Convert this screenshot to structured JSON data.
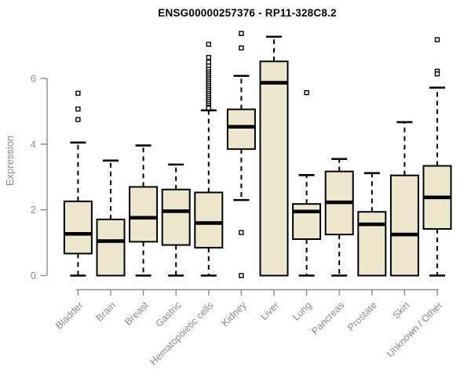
{
  "chart_data": {
    "type": "boxplot",
    "title": "ENSG00000257376 - RP11-328C8.2",
    "ylabel": "Expression",
    "xlabel": "",
    "ylim": [
      -0.4,
      7.5
    ],
    "yticks": [
      0,
      2,
      4,
      6
    ],
    "grid": false,
    "legend": "none",
    "categories": [
      "Bladder",
      "Brain",
      "Breast",
      "Gastric",
      "Hematopoietic cells",
      "Kidney",
      "Liver",
      "Lung",
      "Pancreas",
      "Prostate",
      "Skin",
      "Unknown / Other"
    ],
    "boxes": [
      {
        "label": "Bladder",
        "whisker_low": 0.0,
        "q1": 0.67,
        "median": 1.27,
        "q3": 2.26,
        "whisker_high": 4.05,
        "outliers": [
          4.75,
          5.07,
          5.55
        ]
      },
      {
        "label": "Brain",
        "whisker_low": 0.0,
        "q1": 0.0,
        "median": 1.05,
        "q3": 1.71,
        "whisker_high": 3.5,
        "outliers": []
      },
      {
        "label": "Breast",
        "whisker_low": 0.0,
        "q1": 1.03,
        "median": 1.76,
        "q3": 2.7,
        "whisker_high": 3.96,
        "outliers": []
      },
      {
        "label": "Gastric",
        "whisker_low": 0.0,
        "q1": 0.93,
        "median": 1.96,
        "q3": 2.62,
        "whisker_high": 3.38,
        "outliers": []
      },
      {
        "label": "Hematopoietic cells",
        "whisker_low": 0.0,
        "q1": 0.85,
        "median": 1.6,
        "q3": 2.53,
        "whisker_high": 5.03,
        "outliers": [
          7.04,
          6.64,
          6.5,
          6.38,
          6.28,
          6.2,
          6.14,
          6.08,
          6.02,
          5.96,
          5.9,
          5.84,
          5.78,
          5.72,
          5.66,
          5.6,
          5.54,
          5.48,
          5.42,
          5.36,
          5.3,
          5.24,
          5.18,
          5.12,
          5.1
        ]
      },
      {
        "label": "Kidney",
        "whisker_low": 2.3,
        "q1": 3.85,
        "median": 4.53,
        "q3": 5.06,
        "whisker_high": 6.08,
        "outliers": [
          7.37,
          6.93,
          1.31,
          0.0
        ]
      },
      {
        "label": "Liver",
        "whisker_low": 0.0,
        "q1": 0.0,
        "median": 5.87,
        "q3": 6.52,
        "whisker_high": 7.27,
        "outliers": []
      },
      {
        "label": "Lung",
        "whisker_low": 0.0,
        "q1": 1.11,
        "median": 1.95,
        "q3": 2.18,
        "whisker_high": 3.06,
        "outliers": [
          5.57
        ]
      },
      {
        "label": "Pancreas",
        "whisker_low": 0.0,
        "q1": 1.25,
        "median": 2.23,
        "q3": 3.17,
        "whisker_high": 3.55,
        "outliers": []
      },
      {
        "label": "Prostate",
        "whisker_low": 0.0,
        "q1": 0.0,
        "median": 1.56,
        "q3": 1.94,
        "whisker_high": 3.12,
        "outliers": []
      },
      {
        "label": "Skin",
        "whisker_low": 0.0,
        "q1": 0.0,
        "median": 1.25,
        "q3": 3.05,
        "whisker_high": 4.67,
        "outliers": []
      },
      {
        "label": "Unknown / Other",
        "whisker_low": 0.0,
        "q1": 1.42,
        "median": 2.38,
        "q3": 3.34,
        "whisker_high": 5.72,
        "outliers": [
          7.18,
          6.22,
          6.14
        ]
      }
    ],
    "colors": {
      "box_fill": "#EDE8CD",
      "box_border": "#000000",
      "median": "#000000",
      "whisker": "#000000",
      "outlier": "#000000",
      "axis": "#8C8C8C",
      "title": "#000000",
      "background": "#FFFFFF"
    }
  }
}
